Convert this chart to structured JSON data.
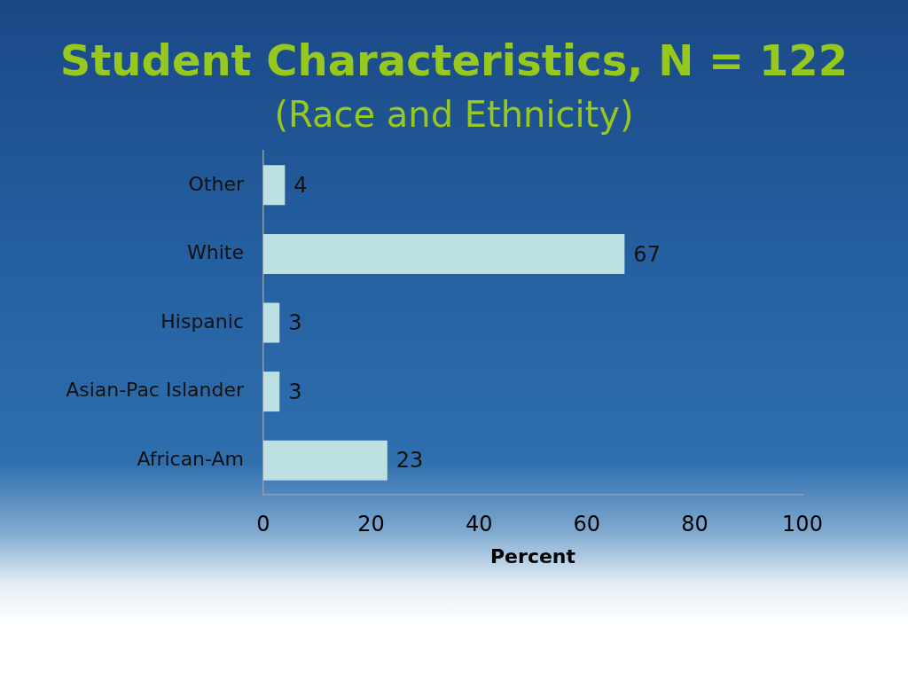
{
  "chart_data": {
    "type": "bar",
    "orientation": "horizontal",
    "title": "Student Characteristics, N = 122",
    "subtitle": "(Race and Ethnicity)",
    "xlabel": "Percent",
    "categories": [
      "Other",
      "White",
      "Hispanic",
      "Asian-Pac Islander",
      "African-Am"
    ],
    "values": [
      4,
      67,
      3,
      3,
      23
    ],
    "color": "#bde0e3",
    "xlim": [
      0,
      100
    ],
    "xticks": [
      0,
      20,
      40,
      60,
      80,
      100
    ],
    "data_labels": true
  }
}
